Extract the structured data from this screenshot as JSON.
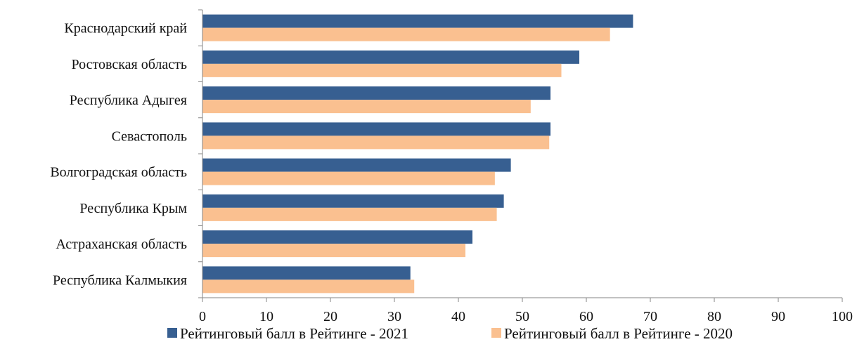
{
  "chart_data": {
    "type": "bar",
    "orientation": "horizontal",
    "title": "",
    "xlabel": "",
    "ylabel": "",
    "xlim": [
      0,
      100
    ],
    "x_ticks": [
      0,
      10,
      20,
      30,
      40,
      50,
      60,
      70,
      80,
      90,
      100
    ],
    "grid": false,
    "legend_position": "bottom",
    "categories": [
      "Краснодарский край",
      "Ростовская область",
      "Республика Адыгея",
      "Севастополь",
      "Волгоградская область",
      "Республика Крым",
      "Астраханская область",
      "Республика Калмыкия"
    ],
    "series": [
      {
        "name": "Рейтинговый балл в Рейтинге - 2021",
        "color": "#375F91",
        "values": [
          67.3,
          58.9,
          54.4,
          54.4,
          48.2,
          47.1,
          42.2,
          32.5
        ]
      },
      {
        "name": "Рейтинговый балл в Рейтинге - 2020",
        "color": "#FAC090",
        "values": [
          63.7,
          56.1,
          51.3,
          54.2,
          45.7,
          46.0,
          41.1,
          33.1
        ]
      }
    ]
  }
}
